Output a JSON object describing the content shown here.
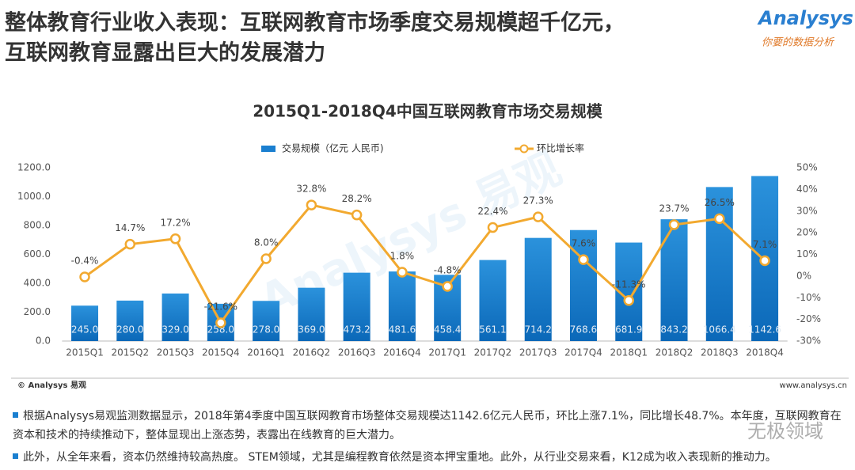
{
  "header": {
    "title_lines": [
      "整体教育行业收入表现：互联网教育市场季度交易规模超千亿元，",
      "互联网教育显露出巨大的发展潜力"
    ],
    "logo": "Analysys 易观",
    "logo_tagline": "你要的数据分析"
  },
  "chart_data": {
    "type": "combo",
    "title": "2015Q1-2018Q4中国互联网教育市场交易规模",
    "categories": [
      "2015Q1",
      "2015Q2",
      "2015Q3",
      "2015Q4",
      "2016Q1",
      "2016Q2",
      "2016Q3",
      "2016Q4",
      "2017Q1",
      "2017Q2",
      "2017Q3",
      "2017Q4",
      "2018Q1",
      "2018Q2",
      "2018Q3",
      "2018Q4"
    ],
    "series": [
      {
        "name": "交易规模（亿元 人民币)",
        "type": "bar",
        "color": "#1a7fd0",
        "values": [
          245.0,
          280.0,
          329.0,
          258.0,
          278.0,
          369.0,
          473.2,
          481.6,
          458.4,
          561.1,
          714.2,
          768.6,
          681.9,
          843.2,
          1066.4,
          1142.6
        ],
        "value_labels": [
          "245.0",
          "280.0",
          "329.0",
          "258.0",
          "278.0",
          "369.0",
          "473.2",
          "481.6",
          "458.4",
          "561.1",
          "714.2",
          "768.6",
          "681.9",
          "843.2",
          "1066.4",
          "1142.6"
        ]
      },
      {
        "name": "环比增长率",
        "type": "line",
        "axis": "y2",
        "color": "#f2a92f",
        "values": [
          -0.4,
          14.7,
          17.2,
          -21.6,
          8.0,
          32.8,
          28.2,
          1.8,
          -4.8,
          22.4,
          27.3,
          7.6,
          -11.3,
          23.7,
          26.5,
          7.1
        ],
        "value_labels": [
          "-0.4%",
          "14.7%",
          "17.2%",
          "-21.6%",
          "8.0%",
          "32.8%",
          "28.2%",
          "1.8%",
          "-4.8%",
          "22.4%",
          "27.3%",
          "7.6%",
          "-11.3%",
          "23.7%",
          "26.5%",
          "7.1%"
        ]
      }
    ],
    "ylim": [
      0,
      1200
    ],
    "yticks": [
      {
        "value": 0,
        "label": "0.0"
      },
      {
        "value": 200,
        "label": "200.0"
      },
      {
        "value": 400,
        "label": "400.0"
      },
      {
        "value": 600,
        "label": "600.0"
      },
      {
        "value": 800,
        "label": "800.0"
      },
      {
        "value": 1000,
        "label": "1000.0"
      },
      {
        "value": 1200,
        "label": "1200.0"
      }
    ],
    "y2lim": [
      -30,
      50
    ],
    "y2ticks": [
      {
        "value": -30,
        "label": "-30%"
      },
      {
        "value": -20,
        "label": "-20%"
      },
      {
        "value": -10,
        "label": "-10%"
      },
      {
        "value": 0,
        "label": "0%"
      },
      {
        "value": 10,
        "label": "10%"
      },
      {
        "value": 20,
        "label": "20%"
      },
      {
        "value": 30,
        "label": "30%"
      },
      {
        "value": 40,
        "label": "40%"
      },
      {
        "value": 50,
        "label": "50%"
      }
    ],
    "grid": false,
    "legend": "top",
    "watermark": "Analysys 易观",
    "source": "© Analysys 易观",
    "website": "www.analysys.cn"
  },
  "bullets": [
    "根据Analysys易观监测数据显示，2018年第4季度中国互联网教育市场整体交易规模达1142.6亿元人民币，环比上涨7.1%，同比增长48.7%。本年度，互联网教育在资本和技术的持续推动下，整体显现出上涨态势，表露出在线教育的巨大潜力。",
    "此外，从全年来看，资本仍然维持较高热度。 STEM领域，尤其是编程教育依然是资本押宝重地。此外，从行业交易来看，K12成为收入表现新的推动力。"
  ],
  "wechat_watermark": "无极领域"
}
